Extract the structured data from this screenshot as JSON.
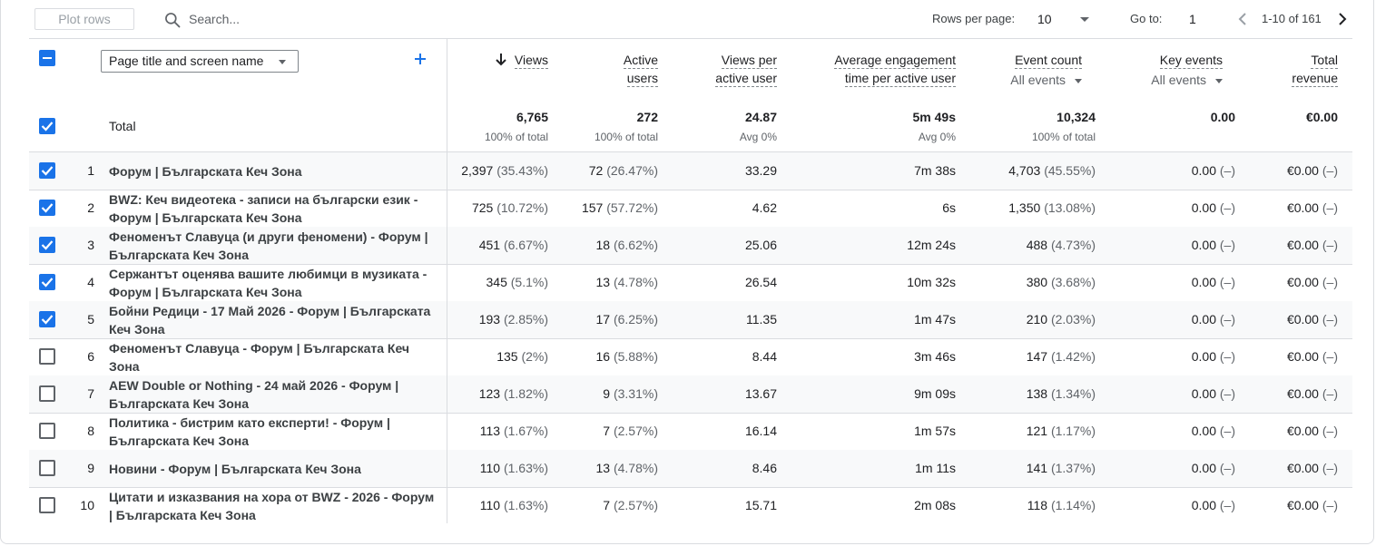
{
  "toolbar": {
    "plot_rows": "Plot rows",
    "search_placeholder": "Search...",
    "rows_per_page_label": "Rows per page:",
    "rows_per_page_value": "10",
    "goto_label": "Go to:",
    "goto_value": "1",
    "range_text": "1-10 of 161"
  },
  "dimension": {
    "label": "Page title and screen name"
  },
  "columns": {
    "views": "Views",
    "active_l1": "Active",
    "active_l2": "users",
    "vpu_l1": "Views per",
    "vpu_l2": "active user",
    "aet_l1": "Average engagement",
    "aet_l2": "time per active user",
    "event_count": "Event count",
    "event_sub": "All events",
    "key_events": "Key events",
    "key_sub": "All events",
    "rev_l1": "Total",
    "rev_l2": "revenue"
  },
  "totals": {
    "label": "Total",
    "views": "6,765",
    "views_sub": "100% of total",
    "active": "272",
    "active_sub": "100% of total",
    "vpu": "24.87",
    "vpu_sub": "Avg 0%",
    "aet": "5m 49s",
    "aet_sub": "Avg 0%",
    "events": "10,324",
    "events_sub": "100% of total",
    "key": "0.00",
    "revenue": "€0.00"
  },
  "rows": [
    {
      "n": "1",
      "checked": true,
      "t1": "Форум | Българската Кеч Зона",
      "t2": "",
      "views": "2,397",
      "views_pct": "(35.43%)",
      "users": "72",
      "users_pct": "(26.47%)",
      "vpu": "33.29",
      "aet": "7m 38s",
      "events": "4,703",
      "events_pct": "(45.55%)",
      "key": "0.00",
      "key_pct": "(–)",
      "rev": "€0.00",
      "rev_pct": "(–)"
    },
    {
      "n": "2",
      "checked": true,
      "t1": "BWZ: Кеч видеотека - записи на български език -",
      "t2": "Форум | Българската Кеч Зона",
      "views": "725",
      "views_pct": "(10.72%)",
      "users": "157",
      "users_pct": "(57.72%)",
      "vpu": "4.62",
      "aet": "6s",
      "events": "1,350",
      "events_pct": "(13.08%)",
      "key": "0.00",
      "key_pct": "(–)",
      "rev": "€0.00",
      "rev_pct": "(–)"
    },
    {
      "n": "3",
      "checked": true,
      "t1": "Феноменът Славуца (и други феномени) - Форум |",
      "t2": "Българската Кеч Зона",
      "views": "451",
      "views_pct": "(6.67%)",
      "users": "18",
      "users_pct": "(6.62%)",
      "vpu": "25.06",
      "aet": "12m 24s",
      "events": "488",
      "events_pct": "(4.73%)",
      "key": "0.00",
      "key_pct": "(–)",
      "rev": "€0.00",
      "rev_pct": "(–)"
    },
    {
      "n": "4",
      "checked": true,
      "t1": "Сержантът оценява вашите любимци в музиката -",
      "t2": "Форум | Българската Кеч Зона",
      "views": "345",
      "views_pct": "(5.1%)",
      "users": "13",
      "users_pct": "(4.78%)",
      "vpu": "26.54",
      "aet": "10m 32s",
      "events": "380",
      "events_pct": "(3.68%)",
      "key": "0.00",
      "key_pct": "(–)",
      "rev": "€0.00",
      "rev_pct": "(–)"
    },
    {
      "n": "5",
      "checked": true,
      "t1": "Бойни Редици - 17 Май 2026 - Форум | Българската",
      "t2": "Кеч Зона",
      "views": "193",
      "views_pct": "(2.85%)",
      "users": "17",
      "users_pct": "(6.25%)",
      "vpu": "11.35",
      "aet": "1m 47s",
      "events": "210",
      "events_pct": "(2.03%)",
      "key": "0.00",
      "key_pct": "(–)",
      "rev": "€0.00",
      "rev_pct": "(–)"
    },
    {
      "n": "6",
      "checked": false,
      "t1": "Феноменът Славуца - Форум | Българската Кеч",
      "t2": "Зона",
      "views": "135",
      "views_pct": "(2%)",
      "users": "16",
      "users_pct": "(5.88%)",
      "vpu": "8.44",
      "aet": "3m 46s",
      "events": "147",
      "events_pct": "(1.42%)",
      "key": "0.00",
      "key_pct": "(–)",
      "rev": "€0.00",
      "rev_pct": "(–)"
    },
    {
      "n": "7",
      "checked": false,
      "t1": "AEW Double or Nothing - 24 май 2026 - Форум |",
      "t2": "Българската Кеч Зона",
      "views": "123",
      "views_pct": "(1.82%)",
      "users": "9",
      "users_pct": "(3.31%)",
      "vpu": "13.67",
      "aet": "9m 09s",
      "events": "138",
      "events_pct": "(1.34%)",
      "key": "0.00",
      "key_pct": "(–)",
      "rev": "€0.00",
      "rev_pct": "(–)"
    },
    {
      "n": "8",
      "checked": false,
      "t1": "Политика - бистрим като експерти! - Форум |",
      "t2": "Българската Кеч Зона",
      "views": "113",
      "views_pct": "(1.67%)",
      "users": "7",
      "users_pct": "(2.57%)",
      "vpu": "16.14",
      "aet": "1m 57s",
      "events": "121",
      "events_pct": "(1.17%)",
      "key": "0.00",
      "key_pct": "(–)",
      "rev": "€0.00",
      "rev_pct": "(–)"
    },
    {
      "n": "9",
      "checked": false,
      "t1": "Новини - Форум | Българската Кеч Зона",
      "t2": "",
      "views": "110",
      "views_pct": "(1.63%)",
      "users": "13",
      "users_pct": "(4.78%)",
      "vpu": "8.46",
      "aet": "1m 11s",
      "events": "141",
      "events_pct": "(1.37%)",
      "key": "0.00",
      "key_pct": "(–)",
      "rev": "€0.00",
      "rev_pct": "(–)"
    },
    {
      "n": "10",
      "checked": false,
      "t1": "Цитати и изказвания на хора от BWZ - 2026 - Форум",
      "t2": "| Българската Кеч Зона",
      "views": "110",
      "views_pct": "(1.63%)",
      "users": "7",
      "users_pct": "(2.57%)",
      "vpu": "15.71",
      "aet": "2m 08s",
      "events": "118",
      "events_pct": "(1.14%)",
      "key": "0.00",
      "key_pct": "(–)",
      "rev": "€0.00",
      "rev_pct": "(–)"
    }
  ],
  "colors": {
    "accent": "#1a73e8",
    "border": "#dadce0",
    "row_shade": "#f8f9fa",
    "muted": "#5f6368"
  }
}
